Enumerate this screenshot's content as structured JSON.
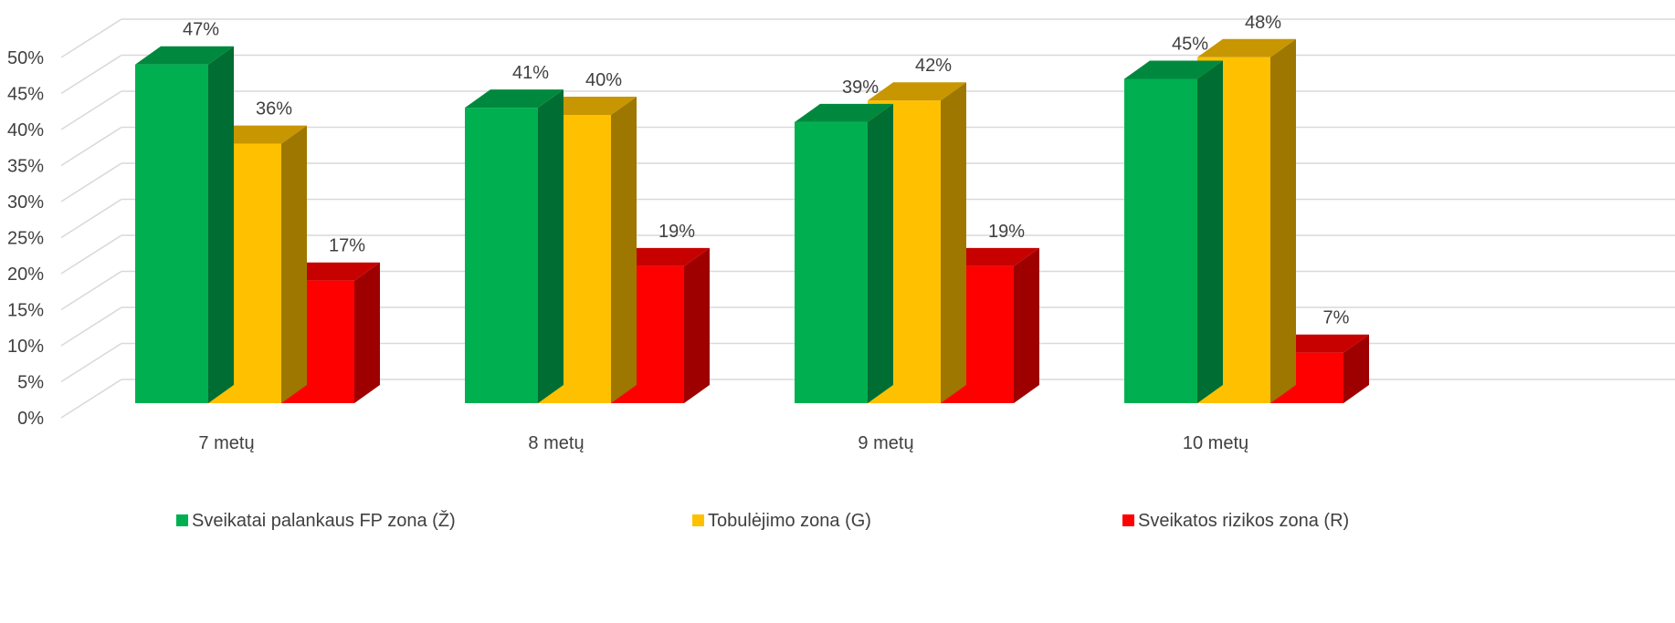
{
  "chart_data": {
    "type": "bar",
    "style": "3d-clustered-column",
    "categories": [
      "7 metų",
      "8 metų",
      "9 metų",
      "10 metų"
    ],
    "series": [
      {
        "name": "Sveikatai palankaus FP zona (Ž)",
        "values": [
          47,
          41,
          39,
          45
        ],
        "labels": [
          "47%",
          "41%",
          "39%",
          "45%"
        ],
        "color": "#00B050"
      },
      {
        "name": "Tobulėjimo zona (G)",
        "values": [
          36,
          40,
          42,
          48
        ],
        "labels": [
          "36%",
          "40%",
          "42%",
          "48%"
        ],
        "color": "#FFC000"
      },
      {
        "name": "Sveikatos rizikos zona (R)",
        "values": [
          17,
          19,
          19,
          7
        ],
        "labels": [
          "17%",
          "19%",
          "19%",
          "7%"
        ],
        "color": "#FF0000"
      }
    ],
    "y_ticks": [
      "0%",
      "5%",
      "10%",
      "15%",
      "20%",
      "25%",
      "30%",
      "35%",
      "40%",
      "45%",
      "50%"
    ],
    "ylim": [
      0,
      50
    ],
    "y_unit": "%",
    "grid": true,
    "legend_position": "bottom",
    "title": "",
    "xlabel": "",
    "ylabel": ""
  }
}
